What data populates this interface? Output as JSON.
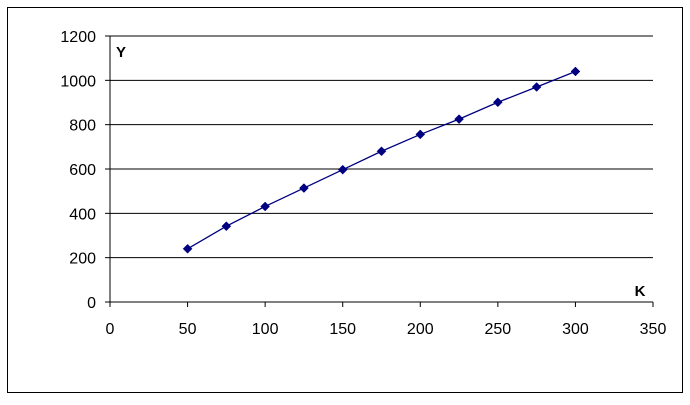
{
  "chart_data": {
    "type": "line",
    "xlabel": "K",
    "ylabel": "Y",
    "xlim": [
      0,
      350
    ],
    "ylim": [
      0,
      1200
    ],
    "x_ticks": [
      0,
      50,
      100,
      150,
      200,
      250,
      300,
      350
    ],
    "y_ticks": [
      0,
      200,
      400,
      600,
      800,
      1000,
      1200
    ],
    "grid": "horizontal",
    "legend": "none",
    "series": [
      {
        "x": [
          50,
          75,
          100,
          125,
          150,
          175,
          200,
          225,
          250,
          275,
          300
        ],
        "values": [
          240,
          342,
          431,
          514,
          597,
          680,
          756,
          825,
          901,
          970,
          1040
        ],
        "color": "#000080",
        "marker": "diamond"
      }
    ]
  }
}
